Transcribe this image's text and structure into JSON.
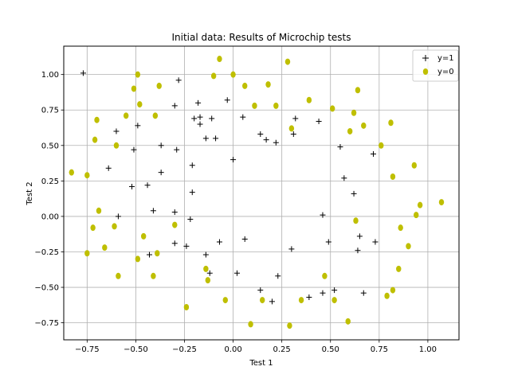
{
  "chart_data": {
    "type": "scatter",
    "title": "Initial data: Results of Microchip tests",
    "xlabel": "Test 1",
    "ylabel": "Test 2",
    "xlim": [
      -0.87,
      1.16
    ],
    "ylim": [
      -0.87,
      1.2
    ],
    "xticks": [
      -0.75,
      -0.5,
      -0.25,
      0.0,
      0.25,
      0.5,
      0.75,
      1.0
    ],
    "xtick_labels": [
      "−0.75",
      "−0.50",
      "−0.25",
      "0.00",
      "0.25",
      "0.50",
      "0.75",
      "1.00"
    ],
    "yticks": [
      -0.75,
      -0.5,
      -0.25,
      0.0,
      0.25,
      0.5,
      0.75,
      1.0
    ],
    "ytick_labels": [
      "−0.75",
      "−0.50",
      "−0.25",
      "0.00",
      "0.25",
      "0.50",
      "0.75",
      "1.00"
    ],
    "grid": true,
    "legend_position": "top-right",
    "series": [
      {
        "name": "y=1",
        "marker": "plus",
        "color": "#000000",
        "points": [
          [
            -0.28,
            0.96
          ],
          [
            -0.18,
            0.8
          ],
          [
            -0.03,
            0.82
          ],
          [
            -0.3,
            0.78
          ],
          [
            -0.2,
            0.69
          ],
          [
            -0.17,
            0.7
          ],
          [
            -0.11,
            0.69
          ],
          [
            -0.17,
            0.65
          ],
          [
            0.05,
            0.7
          ],
          [
            -0.49,
            0.64
          ],
          [
            -0.6,
            0.6
          ],
          [
            -0.14,
            0.55
          ],
          [
            -0.09,
            0.55
          ],
          [
            0.14,
            0.58
          ],
          [
            0.17,
            0.54
          ],
          [
            0.22,
            0.52
          ],
          [
            0.32,
            0.69
          ],
          [
            0.31,
            0.58
          ],
          [
            0.44,
            0.67
          ],
          [
            -0.51,
            0.47
          ],
          [
            -0.29,
            0.47
          ],
          [
            -0.37,
            0.5
          ],
          [
            0.55,
            0.49
          ],
          [
            0.72,
            0.44
          ],
          [
            0.0,
            0.4
          ],
          [
            -0.21,
            0.36
          ],
          [
            -0.64,
            0.34
          ],
          [
            -0.37,
            0.31
          ],
          [
            0.57,
            0.27
          ],
          [
            -0.52,
            0.21
          ],
          [
            -0.44,
            0.22
          ],
          [
            -0.21,
            0.17
          ],
          [
            0.62,
            0.16
          ],
          [
            -0.59,
            0.0
          ],
          [
            -0.41,
            0.04
          ],
          [
            -0.3,
            0.03
          ],
          [
            -0.22,
            -0.02
          ],
          [
            0.46,
            0.01
          ],
          [
            -0.3,
            -0.19
          ],
          [
            -0.24,
            -0.21
          ],
          [
            -0.07,
            -0.18
          ],
          [
            0.06,
            -0.16
          ],
          [
            0.49,
            -0.18
          ],
          [
            0.65,
            -0.14
          ],
          [
            0.73,
            -0.18
          ],
          [
            -0.43,
            -0.27
          ],
          [
            -0.14,
            -0.27
          ],
          [
            0.3,
            -0.23
          ],
          [
            0.64,
            -0.24
          ],
          [
            -0.12,
            -0.4
          ],
          [
            0.02,
            -0.4
          ],
          [
            0.23,
            -0.42
          ],
          [
            0.14,
            -0.52
          ],
          [
            0.2,
            -0.6
          ],
          [
            0.39,
            -0.57
          ],
          [
            0.46,
            -0.54
          ],
          [
            0.52,
            -0.52
          ],
          [
            0.67,
            -0.54
          ],
          [
            -0.77,
            1.01
          ]
        ]
      },
      {
        "name": "y=0",
        "marker": "circle",
        "color": "#bfbf00",
        "points": [
          [
            -0.49,
            1.0
          ],
          [
            -0.07,
            1.11
          ],
          [
            0.0,
            1.0
          ],
          [
            0.28,
            1.09
          ],
          [
            -0.1,
            0.99
          ],
          [
            -0.38,
            0.92
          ],
          [
            -0.51,
            0.9
          ],
          [
            -0.48,
            0.79
          ],
          [
            0.06,
            0.92
          ],
          [
            0.18,
            0.93
          ],
          [
            0.11,
            0.78
          ],
          [
            0.22,
            0.78
          ],
          [
            0.39,
            0.82
          ],
          [
            0.51,
            0.76
          ],
          [
            0.64,
            0.89
          ],
          [
            -0.7,
            0.68
          ],
          [
            -0.55,
            0.71
          ],
          [
            -0.4,
            0.71
          ],
          [
            0.62,
            0.73
          ],
          [
            0.67,
            0.64
          ],
          [
            0.81,
            0.66
          ],
          [
            0.3,
            0.62
          ],
          [
            0.6,
            0.6
          ],
          [
            -0.71,
            0.54
          ],
          [
            -0.6,
            0.5
          ],
          [
            0.76,
            0.5
          ],
          [
            0.93,
            0.36
          ],
          [
            -0.83,
            0.31
          ],
          [
            -0.75,
            0.29
          ],
          [
            0.82,
            0.28
          ],
          [
            0.96,
            0.08
          ],
          [
            1.07,
            0.1
          ],
          [
            -0.69,
            0.04
          ],
          [
            0.94,
            0.01
          ],
          [
            0.63,
            -0.03
          ],
          [
            -0.72,
            -0.08
          ],
          [
            -0.61,
            -0.07
          ],
          [
            -0.3,
            -0.06
          ],
          [
            0.86,
            -0.08
          ],
          [
            -0.46,
            -0.14
          ],
          [
            -0.66,
            -0.22
          ],
          [
            -0.75,
            -0.26
          ],
          [
            -0.49,
            -0.3
          ],
          [
            -0.39,
            -0.26
          ],
          [
            0.9,
            -0.21
          ],
          [
            -0.14,
            -0.37
          ],
          [
            -0.13,
            -0.45
          ],
          [
            -0.41,
            -0.42
          ],
          [
            -0.59,
            -0.42
          ],
          [
            0.47,
            -0.42
          ],
          [
            0.85,
            -0.37
          ],
          [
            -0.04,
            -0.59
          ],
          [
            0.15,
            -0.59
          ],
          [
            0.35,
            -0.59
          ],
          [
            0.52,
            -0.59
          ],
          [
            0.79,
            -0.56
          ],
          [
            0.82,
            -0.52
          ],
          [
            -0.24,
            -0.64
          ],
          [
            0.59,
            -0.74
          ],
          [
            0.09,
            -0.76
          ],
          [
            0.29,
            -0.77
          ]
        ]
      }
    ]
  }
}
